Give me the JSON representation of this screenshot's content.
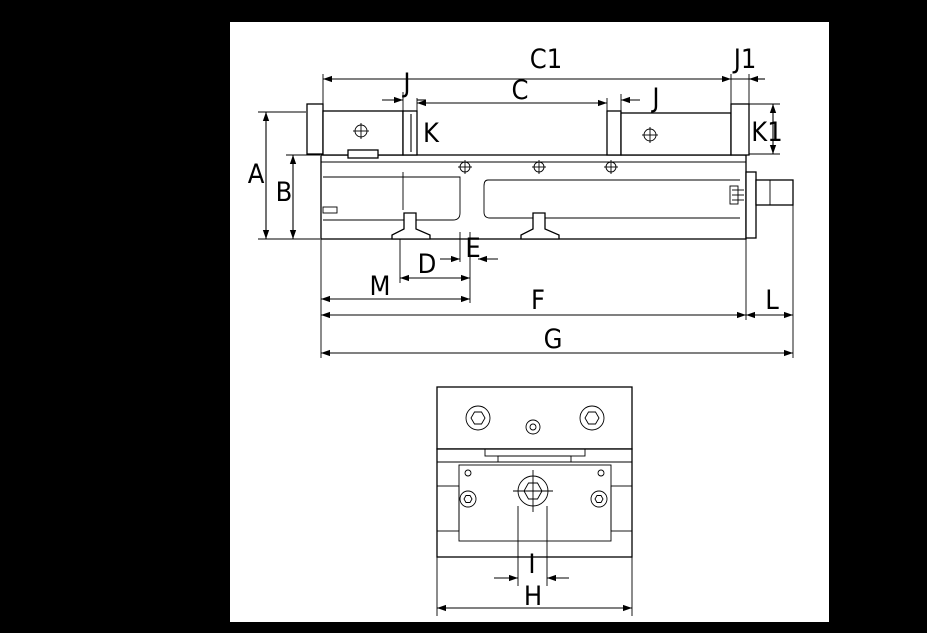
{
  "colors": {
    "page_background": "#000000",
    "sheet_background": "#ffffff",
    "line_color": "#000000"
  },
  "labels": {
    "A": "A",
    "B": "B",
    "C": "C",
    "C1": "C1",
    "D": "D",
    "E": "E",
    "F": "F",
    "G": "G",
    "H": "H",
    "I": "I",
    "J_left": "J",
    "J_right": "J",
    "J1": "J1",
    "K": "K",
    "K1": "K1",
    "L": "L",
    "M": "M"
  }
}
